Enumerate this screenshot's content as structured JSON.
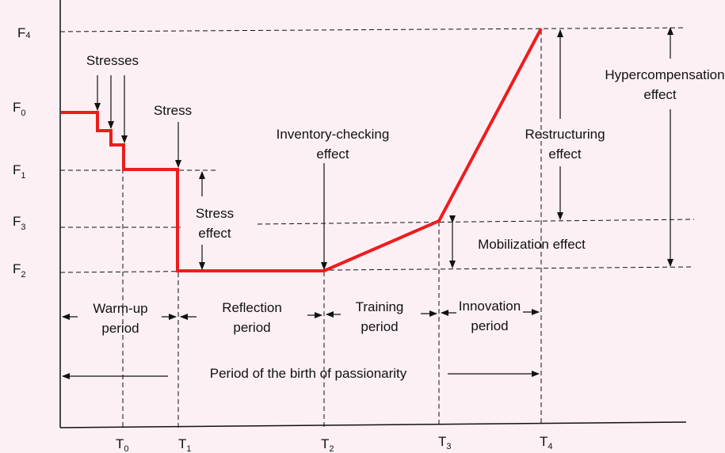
{
  "colors": {
    "background": "#fdf0f4",
    "curve": "#ee1c1c",
    "ink": "#111111"
  },
  "y_levels": [
    {
      "name": "F",
      "sub": "4"
    },
    {
      "name": "F",
      "sub": "0"
    },
    {
      "name": "F",
      "sub": "1"
    },
    {
      "name": "F",
      "sub": "3"
    },
    {
      "name": "F",
      "sub": "2"
    }
  ],
  "x_ticks": [
    {
      "name": "T",
      "sub": "0"
    },
    {
      "name": "T",
      "sub": "1"
    },
    {
      "name": "T",
      "sub": "2"
    },
    {
      "name": "T",
      "sub": "3"
    },
    {
      "name": "T",
      "sub": "4"
    }
  ],
  "labels": {
    "stresses": "Stresses",
    "stress": "Stress",
    "stress_effect": [
      "Stress",
      "effect"
    ],
    "inventory_effect": [
      "Inventory-checking",
      "effect"
    ],
    "restructuring_effect": [
      "Restructuring",
      "effect"
    ],
    "hypercompensation_effect": [
      "Hypercompensation",
      "effect"
    ],
    "mobilization_effect": "Mobilization effect"
  },
  "periods": [
    [
      "Warm-up",
      "period"
    ],
    [
      "Reflection",
      "period"
    ],
    [
      "Training",
      "period"
    ],
    [
      "Innovation",
      "period"
    ]
  ],
  "passionarity_period": "Period of the birth of passionarity"
}
